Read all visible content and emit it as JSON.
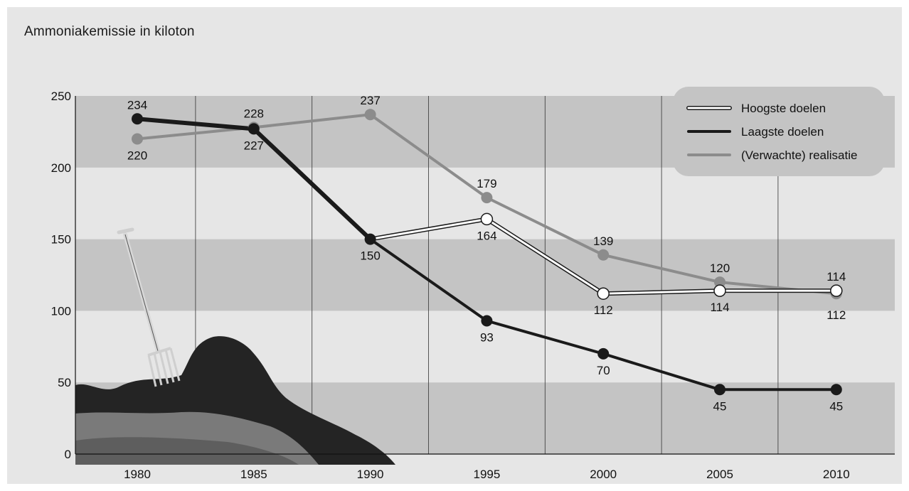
{
  "title": "Ammoniakemissie in kiloton",
  "chart_data": {
    "type": "line",
    "title": "Ammoniakemissie in kiloton",
    "xlabel": "",
    "ylabel": "",
    "ylim": [
      0,
      250
    ],
    "yticks": [
      0,
      50,
      100,
      150,
      200,
      250
    ],
    "categories": [
      "1980",
      "1985",
      "1990",
      "1995",
      "2000",
      "2005",
      "2010"
    ],
    "legend_position": "top-right",
    "series": [
      {
        "name": "Hoogste doelen",
        "key": "hoog",
        "color": "#ffffff",
        "x": [
          "1980",
          "1985",
          "1990",
          "1995",
          "2000",
          "2005",
          "2010"
        ],
        "values": [
          234,
          227,
          150,
          164,
          112,
          114,
          114
        ],
        "labels": [
          "",
          "",
          "",
          "164",
          "112",
          "114",
          "114"
        ]
      },
      {
        "name": "Laagste doelen",
        "key": "laag",
        "color": "#1a1a1a",
        "x": [
          "1980",
          "1985",
          "1990",
          "1995",
          "2000",
          "2005",
          "2010"
        ],
        "values": [
          234,
          227,
          150,
          93,
          70,
          45,
          45
        ],
        "labels": [
          "234",
          "227",
          "150",
          "93",
          "70",
          "45",
          "45"
        ]
      },
      {
        "name": "(Verwachte) realisatie",
        "key": "real",
        "color": "#8c8c8c",
        "x": [
          "1980",
          "1985",
          "1990",
          "1995",
          "2000",
          "2005",
          "2010"
        ],
        "values": [
          220,
          228,
          237,
          179,
          139,
          120,
          112
        ],
        "labels": [
          "220",
          "228",
          "237",
          "179",
          "139",
          "120",
          "112"
        ]
      }
    ]
  }
}
